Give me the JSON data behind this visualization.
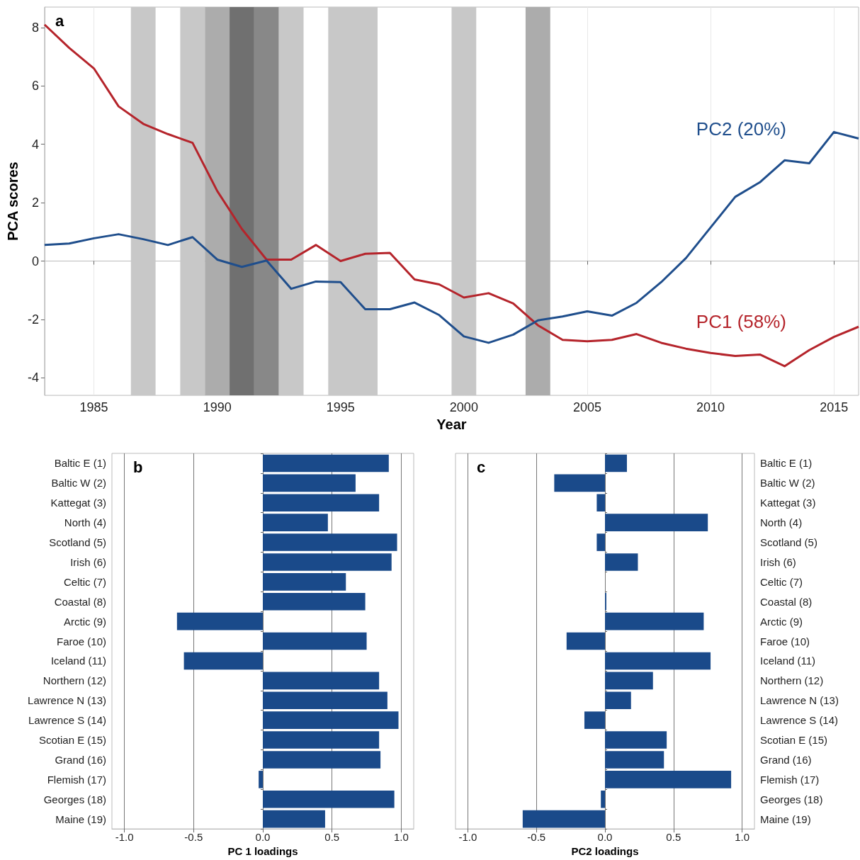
{
  "chart_data": [
    {
      "type": "line",
      "xlabel": "Year",
      "ylabel": "PCA scores",
      "annotations": [
        "a"
      ],
      "x": [
        1983,
        1984,
        1985,
        1986,
        1987,
        1988,
        1989,
        1990,
        1991,
        1992,
        1993,
        1994,
        1995,
        1996,
        1997,
        1998,
        1999,
        2000,
        2001,
        2002,
        2003,
        2004,
        2005,
        2006,
        2007,
        2008,
        2009,
        2010,
        2011,
        2012,
        2013,
        2014,
        2015,
        2016
      ],
      "series": [
        {
          "name": "PC1 (58%)",
          "color": "#b5242b",
          "values": [
            8.1,
            7.3,
            6.6,
            5.3,
            4.7,
            4.35,
            4.05,
            2.4,
            1.1,
            0.05,
            0.05,
            0.55,
            0.0,
            0.25,
            0.28,
            -0.63,
            -0.8,
            -1.25,
            -1.1,
            -1.45,
            -2.2,
            -2.7,
            -2.75,
            -2.7,
            -2.5,
            -2.8,
            -3.0,
            -3.15,
            -3.25,
            -3.2,
            -3.6,
            -3.05,
            -2.6,
            -2.25
          ]
        },
        {
          "name": "PC2 (20%)",
          "color": "#1f4e8c",
          "values": [
            0.55,
            0.6,
            0.78,
            0.92,
            0.75,
            0.55,
            0.82,
            0.05,
            -0.2,
            0.02,
            -0.95,
            -0.7,
            -0.72,
            -1.65,
            -1.65,
            -1.42,
            -1.85,
            -2.58,
            -2.8,
            -2.52,
            -2.03,
            -1.9,
            -1.72,
            -1.87,
            -1.43,
            -0.72,
            0.1,
            1.15,
            2.2,
            2.7,
            3.45,
            3.35,
            4.42,
            4.2
          ]
        }
      ],
      "bands": [
        {
          "axis": "x",
          "from": 1986.5,
          "to": 1987.5,
          "label": null,
          "color": "#c8c8c8"
        },
        {
          "axis": "x",
          "from": 1988.5,
          "to": 1989.5,
          "label": null,
          "color": "#c8c8c8"
        },
        {
          "axis": "x",
          "from": 1989.5,
          "to": 1990.5,
          "label": null,
          "color": "#acacac"
        },
        {
          "axis": "x",
          "from": 1990.5,
          "to": 1991.5,
          "label": null,
          "color": "#707070"
        },
        {
          "axis": "x",
          "from": 1991.5,
          "to": 1992.5,
          "label": null,
          "color": "#888888"
        },
        {
          "axis": "x",
          "from": 1992.5,
          "to": 1993.5,
          "label": null,
          "color": "#c8c8c8"
        },
        {
          "axis": "x",
          "from": 1994.5,
          "to": 1996.5,
          "label": null,
          "color": "#c8c8c8"
        },
        {
          "axis": "x",
          "from": 1999.5,
          "to": 2000.5,
          "label": null,
          "color": "#c8c8c8"
        },
        {
          "axis": "x",
          "from": 2002.5,
          "to": 2003.5,
          "label": null,
          "color": "#acacac"
        }
      ],
      "xlim": [
        1983,
        2016
      ],
      "xticks": [
        1985,
        1990,
        1995,
        2000,
        2005,
        2010,
        2015
      ],
      "ylim": [
        -4.6,
        8.7
      ],
      "yticks": [
        -4,
        -2,
        0,
        2,
        4,
        6,
        8
      ],
      "grid": "x",
      "marker": "none",
      "legend": false
    },
    {
      "type": "bar",
      "orientation": "horizontal",
      "xlabel": "PC 1 loadings",
      "annotations": [
        "b"
      ],
      "categories": [
        "Baltic E (1)",
        "Baltic W (2)",
        "Kattegat (3)",
        "North (4)",
        "Scotland (5)",
        "Irish (6)",
        "Celtic (7)",
        "Coastal (8)",
        "Arctic (9)",
        "Faroe (10)",
        "Iceland (11)",
        "Northern (12)",
        "Lawrence N (13)",
        "Lawrence S (14)",
        "Scotian E (15)",
        "Grand (16)",
        "Flemish (17)",
        "Georges (18)",
        "Maine (19)"
      ],
      "values": [
        0.91,
        0.67,
        0.84,
        0.47,
        0.97,
        0.93,
        0.6,
        0.74,
        -0.62,
        0.75,
        -0.57,
        0.84,
        0.9,
        0.98,
        0.84,
        0.85,
        -0.03,
        0.95,
        0.45
      ],
      "color": "#1a4a8a",
      "xlim": [
        -1.09,
        1.09
      ],
      "xticks": [
        {
          "value": -1,
          "label": "-1.0"
        },
        {
          "value": -0.5,
          "label": "-0.5"
        },
        {
          "value": 0,
          "label": "0.0"
        },
        {
          "value": 0.5,
          "label": "0.5"
        },
        {
          "value": 1,
          "label": "1.0"
        }
      ],
      "grid": "x"
    },
    {
      "type": "bar",
      "orientation": "horizontal",
      "xlabel": "PC2 loadings",
      "annotations": [
        "c"
      ],
      "categories": [
        "Baltic E (1)",
        "Baltic W (2)",
        "Kattegat (3)",
        "North (4)",
        "Scotland (5)",
        "Irish (6)",
        "Celtic (7)",
        "Coastal (8)",
        "Arctic (9)",
        "Faroe (10)",
        "Iceland (11)",
        "Northern (12)",
        "Lawrence N (13)",
        "Lawrence S (14)",
        "Scotian E (15)",
        "Grand (16)",
        "Flemish (17)",
        "Georges (18)",
        "Maine (19)"
      ],
      "values": [
        0.16,
        -0.37,
        -0.06,
        0.75,
        -0.06,
        0.24,
        0.0,
        0.01,
        0.72,
        -0.28,
        0.77,
        0.35,
        0.19,
        -0.15,
        0.45,
        0.43,
        0.92,
        -0.03,
        -0.6
      ],
      "color": "#1a4a8a",
      "xlim": [
        -1.09,
        1.09
      ],
      "xticks": [
        {
          "value": -1,
          "label": "-1.0"
        },
        {
          "value": -0.5,
          "label": "-0.5"
        },
        {
          "value": 0,
          "label": "0.0"
        },
        {
          "value": 0.5,
          "label": "0.5"
        },
        {
          "value": 1,
          "label": "1.0"
        }
      ],
      "grid": "x"
    }
  ]
}
